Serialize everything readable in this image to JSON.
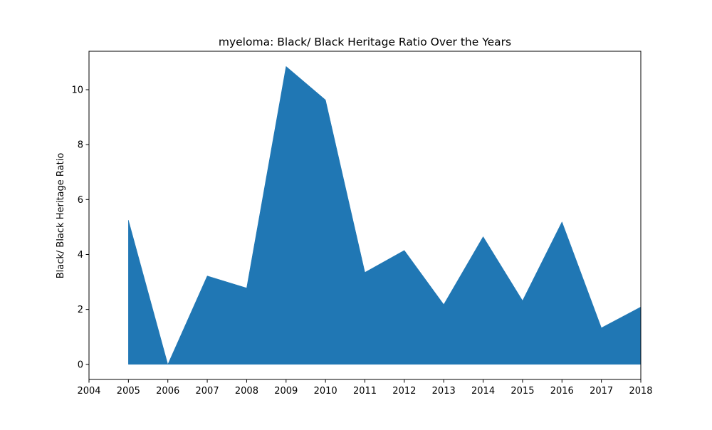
{
  "chart_data": {
    "type": "area",
    "title": "myeloma: Black/ Black Heritage Ratio Over the Years",
    "xlabel": "",
    "ylabel": "Black/ Black Heritage Ratio",
    "x": [
      2005,
      2006,
      2007,
      2008,
      2009,
      2010,
      2011,
      2012,
      2013,
      2014,
      2015,
      2016,
      2017,
      2018
    ],
    "series": [
      {
        "name": "Black/ Black Heritage Ratio",
        "values": [
          5.25,
          0.0,
          3.22,
          2.78,
          10.85,
          9.63,
          3.35,
          4.15,
          2.18,
          4.65,
          2.32,
          5.19,
          1.33,
          2.09
        ],
        "color": "#2077b4"
      }
    ],
    "xlim": [
      2004,
      2018
    ],
    "ylim": [
      -0.55,
      11.4
    ],
    "xticks": [
      "2004",
      "2005",
      "2006",
      "2007",
      "2008",
      "2009",
      "2010",
      "2011",
      "2012",
      "2013",
      "2014",
      "2015",
      "2016",
      "2017",
      "2018"
    ],
    "yticks": [
      "0",
      "2",
      "4",
      "6",
      "8",
      "10"
    ],
    "ytick_values": [
      0,
      2,
      4,
      6,
      8,
      10
    ],
    "grid": false,
    "legend": "none"
  }
}
